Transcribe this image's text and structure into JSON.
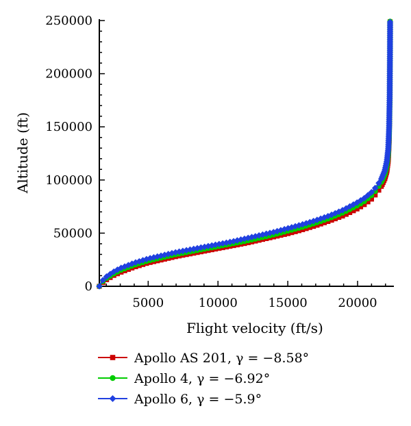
{
  "chart_data": {
    "type": "line",
    "xlabel": "Flight velocity (ft/s)",
    "ylabel": "Altitude (ft)",
    "xlim": [
      1500,
      22600
    ],
    "ylim": [
      0,
      250000
    ],
    "xticks": [
      5000,
      10000,
      15000,
      20000
    ],
    "yticks": [
      0,
      50000,
      100000,
      150000,
      200000,
      250000
    ],
    "grid": false,
    "legend_position": "bottom",
    "series": [
      {
        "name": "Apollo AS 201, γ = −8.58°",
        "color": "#cc0000",
        "marker": "square",
        "x": [
          1500,
          1700,
          2000,
          2500,
          3000,
          4000,
          5000,
          6000,
          7000,
          8000,
          9000,
          10000,
          11000,
          12000,
          13000,
          14000,
          15000,
          16000,
          17000,
          18000,
          19000,
          20000,
          20500,
          21000,
          21400,
          21700,
          21950,
          22100,
          22200,
          22260,
          22300,
          22320,
          22330
        ],
        "y": [
          0,
          3000,
          6000,
          10000,
          13000,
          18000,
          22000,
          25000,
          28000,
          30500,
          33000,
          35500,
          38000,
          40500,
          43500,
          46500,
          49500,
          53000,
          57000,
          61500,
          66500,
          73000,
          77000,
          82000,
          88000,
          94000,
          101000,
          108000,
          118000,
          135000,
          165000,
          210000,
          250000
        ]
      },
      {
        "name": "Apollo 4, γ = −6.92°",
        "color": "#00cc00",
        "marker": "circle",
        "x": [
          1500,
          1700,
          2000,
          2500,
          3000,
          4000,
          5000,
          6000,
          7000,
          8000,
          9000,
          10000,
          11000,
          12000,
          13000,
          14000,
          15000,
          16000,
          17000,
          18000,
          19000,
          20000,
          20500,
          21000,
          21400,
          21700,
          21950,
          22100,
          22200,
          22260,
          22300,
          22320,
          22330
        ],
        "y": [
          0,
          4000,
          7500,
          11500,
          15000,
          20000,
          24000,
          27000,
          30000,
          32500,
          35000,
          37500,
          40000,
          42500,
          45500,
          48500,
          52000,
          55500,
          59500,
          64000,
          69500,
          76000,
          80000,
          85500,
          91500,
          98000,
          105000,
          113000,
          124000,
          142000,
          172000,
          215000,
          250000
        ]
      },
      {
        "name": "Apollo 6, γ = −5.9°",
        "color": "#2040e0",
        "marker": "diamond",
        "x": [
          1500,
          1700,
          2000,
          2500,
          3000,
          4000,
          5000,
          6000,
          7000,
          8000,
          9000,
          10000,
          11000,
          12000,
          13000,
          14000,
          15000,
          16000,
          17000,
          18000,
          19000,
          20000,
          20500,
          21000,
          21400,
          21700,
          21950,
          22100,
          22200,
          22260,
          22300,
          22320,
          22330
        ],
        "y": [
          0,
          5000,
          9000,
          13500,
          17000,
          22000,
          26000,
          29000,
          32000,
          34500,
          37000,
          39500,
          42000,
          45000,
          48000,
          51000,
          54500,
          58000,
          62000,
          66500,
          72000,
          79000,
          83000,
          88500,
          94500,
          101000,
          109000,
          118000,
          130000,
          150000,
          180000,
          220000,
          250000
        ]
      }
    ]
  }
}
